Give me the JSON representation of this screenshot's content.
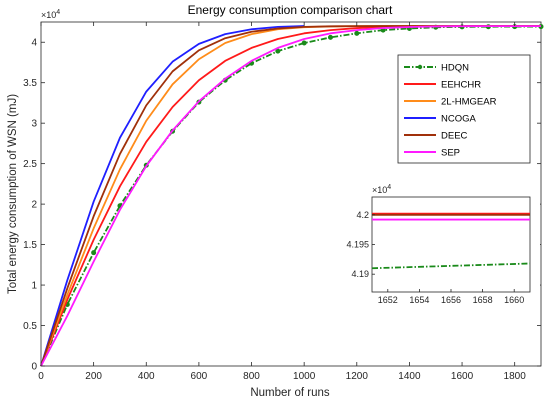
{
  "chart_data": {
    "type": "line",
    "title": "Energy consumption comparison chart",
    "xlabel": "Number of runs",
    "ylabel": "Total energy consumption of WSN (mJ)",
    "xlim": [
      0,
      1900
    ],
    "ylim": [
      0,
      42500
    ],
    "x_ticks": [
      0,
      200,
      400,
      600,
      800,
      1000,
      1200,
      1400,
      1600,
      1800
    ],
    "x_tick_labels": [
      "0",
      "200",
      "400",
      "600",
      "800",
      "1000",
      "1200",
      "1400",
      "1600",
      "1800"
    ],
    "y_ticks": [
      0,
      5000,
      10000,
      15000,
      20000,
      25000,
      30000,
      35000,
      40000
    ],
    "y_tick_labels": [
      "0",
      "0.5",
      "1",
      "1.5",
      "2",
      "2.5",
      "3",
      "3.5",
      "4"
    ],
    "y_exponent_label": "×10",
    "y_exponent_power": "4",
    "grid": false,
    "legend_position": "top-right",
    "series": [
      {
        "name": "HDQN",
        "color": "#1a8a1a",
        "style": "dash-dot",
        "marker": "circle",
        "x": [
          0,
          100,
          200,
          300,
          400,
          500,
          600,
          700,
          800,
          900,
          1000,
          1100,
          1200,
          1300,
          1400,
          1500,
          1600,
          1700,
          1800,
          1900
        ],
        "y": [
          0,
          7600,
          14000,
          19800,
          24800,
          29000,
          32600,
          35300,
          37400,
          38900,
          39900,
          40600,
          41100,
          41500,
          41700,
          41850,
          41900,
          41920,
          41930,
          41935
        ]
      },
      {
        "name": "EEHCHR",
        "color": "#ff1a1a",
        "style": "solid",
        "x": [
          0,
          100,
          200,
          300,
          400,
          500,
          600,
          700,
          800,
          900,
          1000,
          1100,
          1200,
          1300,
          1400,
          1500,
          1600,
          1700,
          1800,
          1900
        ],
        "y": [
          0,
          8200,
          15600,
          22200,
          27700,
          32000,
          35300,
          37700,
          39300,
          40400,
          41100,
          41500,
          41750,
          41880,
          41950,
          41990,
          42000,
          42005,
          42005,
          42005
        ]
      },
      {
        "name": "2L-HMGEAR",
        "color": "#ff8c1a",
        "style": "solid",
        "x": [
          0,
          100,
          200,
          300,
          400,
          500,
          600,
          700,
          800,
          900,
          1000,
          1100,
          1200,
          1300,
          1400,
          1500,
          1600,
          1700,
          1800,
          1900
        ],
        "y": [
          0,
          8800,
          17000,
          24300,
          30300,
          34800,
          37900,
          39900,
          41000,
          41600,
          41850,
          41950,
          41990,
          42000,
          42000,
          42000,
          42000,
          42000,
          42000,
          42000
        ]
      },
      {
        "name": "NCOGA",
        "color": "#1f1fff",
        "style": "solid",
        "x": [
          0,
          100,
          200,
          300,
          400,
          500,
          600,
          700,
          800,
          900,
          1000
        ],
        "y": [
          0,
          10600,
          20300,
          28200,
          33900,
          37600,
          39800,
          41000,
          41600,
          41900,
          42000
        ]
      },
      {
        "name": "DEEC",
        "color": "#a0300a",
        "style": "solid",
        "x": [
          0,
          100,
          200,
          300,
          400,
          500,
          600,
          700,
          800,
          900,
          1000,
          1100,
          1200,
          1300,
          1400,
          1500,
          1600,
          1700,
          1800,
          1900
        ],
        "y": [
          0,
          9600,
          18500,
          26200,
          32200,
          36400,
          39000,
          40500,
          41300,
          41700,
          41900,
          41970,
          41990,
          42000,
          42000,
          42000,
          42000,
          42000,
          42000,
          42000
        ]
      },
      {
        "name": "SEP",
        "color": "#ff1aff",
        "style": "solid",
        "x": [
          0,
          100,
          200,
          300,
          400,
          500,
          600,
          700,
          800,
          900,
          1000,
          1100,
          1200,
          1300,
          1400,
          1500,
          1600,
          1700,
          1800,
          1900
        ],
        "y": [
          0,
          6200,
          12900,
          19300,
          24700,
          29100,
          32700,
          35500,
          37700,
          39300,
          40400,
          41100,
          41500,
          41750,
          41880,
          41950,
          41980,
          41990,
          41995,
          41995
        ]
      }
    ],
    "inset": {
      "xlim": [
        1651,
        1661
      ],
      "ylim": [
        41870,
        42030
      ],
      "x_ticks": [
        1652,
        1654,
        1656,
        1658,
        1660
      ],
      "x_tick_labels": [
        "1652",
        "1654",
        "1656",
        "1658",
        "1660"
      ],
      "y_ticks": [
        41900,
        41950,
        42000
      ],
      "y_tick_labels": [
        "4.19",
        "4.195",
        "4.2"
      ],
      "y_exponent_label": "×10",
      "y_exponent_power": "4",
      "lines": [
        {
          "name": "EEHCHR",
          "color": "#ff1a1a",
          "y": [
            42002,
            42002
          ]
        },
        {
          "name": "DEEC",
          "color": "#a0300a",
          "y": [
            42000,
            42000
          ]
        },
        {
          "name": "SEP",
          "color": "#ff1aff",
          "y": [
            41992,
            41992
          ]
        },
        {
          "name": "HDQN",
          "color": "#1a8a1a",
          "y": [
            41910,
            41918
          ],
          "style": "dash-dot"
        }
      ]
    }
  }
}
